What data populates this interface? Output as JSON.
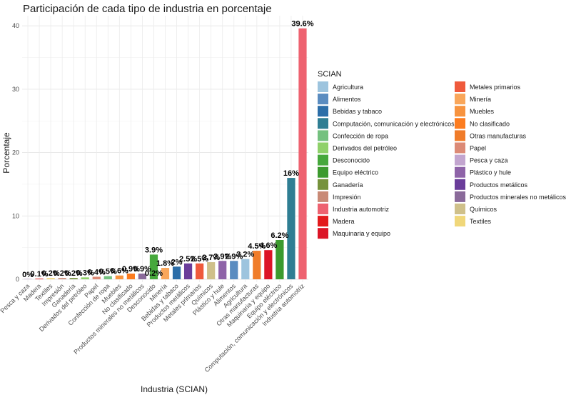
{
  "chart_data": {
    "type": "bar",
    "title": "Participación de cada tipo de industria en porcentaje",
    "xlabel": "Industria (SCIAN)",
    "ylabel": "Porcentaje",
    "ylim": [
      0,
      41.5
    ],
    "yticks": [
      0,
      10,
      20,
      30,
      40
    ],
    "grid": true,
    "legend_title": "SCIAN",
    "legend_position": "right",
    "categories": [
      "Pesca y caza",
      "Madera",
      "Textiles",
      "Impresión",
      "Ganadería",
      "Derivados del petróleo",
      "Papel",
      "Confección de ropa",
      "Muebles",
      "No clasificado",
      "Productos minerales no metálicos",
      "Desconocido",
      "Minería",
      "Bebidas y tabaco",
      "Productos metálicos",
      "Metales primarios",
      "Químicos",
      "Plástico y hule",
      "Alimentos",
      "Agricultura",
      "Otras manufacturas",
      "Maquinaria y equipo",
      "Equipo eléctrico",
      "Computación, comunicación y electrónicos",
      "Industria automotriz"
    ],
    "values": [
      0.02,
      0.1,
      0.2,
      0.2,
      0.2,
      0.3,
      0.4,
      0.5,
      0.6,
      0.9,
      0.9,
      3.9,
      1.8,
      2.0,
      2.5,
      2.5,
      2.7,
      2.9,
      2.9,
      3.2,
      4.5,
      4.6,
      6.2,
      16.0,
      39.6
    ],
    "data_labels": [
      "0%",
      "0.1%",
      "0.2%",
      "0.2%",
      "0.2%",
      "0.3%",
      "0.4%",
      "0.5%",
      "0.6%",
      "0.9%",
      "0.9%",
      "3.9%",
      "1.8%",
      "2%",
      "2.5%",
      "2.5%",
      "2.7%",
      "2.9%",
      "2.9%",
      "3.2%",
      "4.5%",
      "4.6%",
      "6.2%",
      "16%",
      "39.6%"
    ],
    "extra_label": "0.2%",
    "colors": [
      "#C2A5CF",
      "#E31A1C",
      "#F0D77A",
      "#C98A76",
      "#76923C",
      "#8FD16A",
      "#DC8A76",
      "#74C17F",
      "#F7933F",
      "#FC7C1F",
      "#8A6A9A",
      "#46A83C",
      "#F9A65A",
      "#2C6EA8",
      "#6A3D9A",
      "#EF5A3C",
      "#CFC08A",
      "#8E63A8",
      "#5A8CC0",
      "#9DC4DE",
      "#F07C2A",
      "#DC1426",
      "#3C9A2E",
      "#2F7E93",
      "#EE6270"
    ],
    "legend": [
      {
        "name": "Agricultura",
        "color": "#9DC4DE"
      },
      {
        "name": "Alimentos",
        "color": "#5A8CC0"
      },
      {
        "name": "Bebidas y tabaco",
        "color": "#2C6EA8"
      },
      {
        "name": "Computación, comunicación y electrónicos",
        "color": "#2F7E93"
      },
      {
        "name": "Confección de ropa",
        "color": "#74C17F"
      },
      {
        "name": "Derivados del petróleo",
        "color": "#8FD16A"
      },
      {
        "name": "Desconocido",
        "color": "#46A83C"
      },
      {
        "name": "Equipo eléctrico",
        "color": "#3C9A2E"
      },
      {
        "name": "Ganadería",
        "color": "#76923C"
      },
      {
        "name": "Impresión",
        "color": "#C98A76"
      },
      {
        "name": "Industria automotriz",
        "color": "#EE6270"
      },
      {
        "name": "Madera",
        "color": "#E31A1C"
      },
      {
        "name": "Maquinaria y equipo",
        "color": "#DC1426"
      },
      {
        "name": "Metales primarios",
        "color": "#EF5A3C"
      },
      {
        "name": "Minería",
        "color": "#F9A65A"
      },
      {
        "name": "Muebles",
        "color": "#F7933F"
      },
      {
        "name": "No clasificado",
        "color": "#FC7C1F"
      },
      {
        "name": "Otras manufacturas",
        "color": "#F07C2A"
      },
      {
        "name": "Papel",
        "color": "#DC8A76"
      },
      {
        "name": "Pesca y caza",
        "color": "#C2A5CF"
      },
      {
        "name": "Plástico y hule",
        "color": "#8E63A8"
      },
      {
        "name": "Productos metálicos",
        "color": "#6A3D9A"
      },
      {
        "name": "Productos minerales no metálicos",
        "color": "#8A6A9A"
      },
      {
        "name": "Químicos",
        "color": "#CFC08A"
      },
      {
        "name": "Textiles",
        "color": "#F0D77A"
      }
    ]
  }
}
